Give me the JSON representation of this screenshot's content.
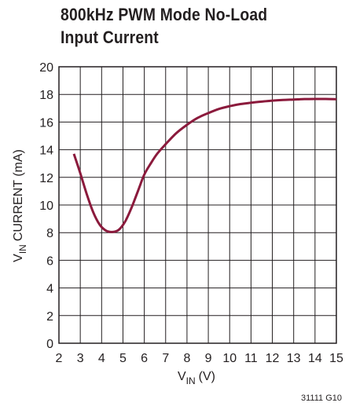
{
  "title": "800kHz PWM Mode No-Load Input Current",
  "figure_ref": "31111 G10",
  "chart_data": {
    "type": "line",
    "title": "800kHz PWM Mode No-Load Input Current",
    "xlabel": "V_IN (V)",
    "xlabel_main": "V",
    "xlabel_sub": "IN",
    "xlabel_unit": "(V)",
    "ylabel": "V_IN CURRENT (mA)",
    "ylabel_main": "V",
    "ylabel_sub": "IN",
    "ylabel_rest": "CURRENT (mA)",
    "xlim": [
      2,
      15
    ],
    "ylim": [
      0,
      20
    ],
    "xticks": [
      2,
      3,
      4,
      5,
      6,
      7,
      8,
      9,
      10,
      11,
      12,
      13,
      14,
      15
    ],
    "yticks": [
      0,
      2,
      4,
      6,
      8,
      10,
      12,
      14,
      16,
      18,
      20
    ],
    "grid": true,
    "line_color": "#8b1a3c",
    "series": [
      {
        "x": [
          2.7,
          3.0,
          3.3,
          3.6,
          3.9,
          4.2,
          4.5,
          4.8,
          5.1,
          5.4,
          5.7,
          6.0,
          6.3,
          6.6,
          7.0,
          7.5,
          8.0,
          8.5,
          9.0,
          9.5,
          10.0,
          10.5,
          11.0,
          11.5,
          12.0,
          12.5,
          13.0,
          13.5,
          14.0,
          14.5,
          15.0
        ],
        "y": [
          13.7,
          12.3,
          10.8,
          9.5,
          8.6,
          8.15,
          8.05,
          8.2,
          8.8,
          9.8,
          11.0,
          12.2,
          13.0,
          13.7,
          14.4,
          15.2,
          15.8,
          16.3,
          16.65,
          16.95,
          17.15,
          17.3,
          17.4,
          17.48,
          17.55,
          17.6,
          17.63,
          17.66,
          17.67,
          17.67,
          17.65
        ]
      }
    ]
  }
}
